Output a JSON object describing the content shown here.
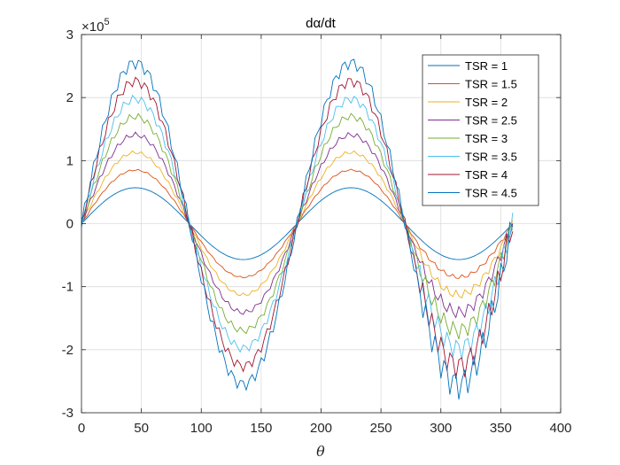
{
  "chart_data": {
    "type": "line",
    "title": "dα/dt",
    "xlabel": "θ",
    "ylabel": "",
    "xlim": [
      0,
      400
    ],
    "ylim": [
      -3,
      3
    ],
    "y_multiplier": "×10",
    "y_multiplier_exponent": "5",
    "xticks": [
      "0",
      "50",
      "100",
      "150",
      "200",
      "250",
      "300",
      "350",
      "400"
    ],
    "yticks": [
      "-3",
      "-2",
      "-1",
      "0",
      "1",
      "2",
      "3"
    ],
    "grid": true,
    "legend_location": "top-right",
    "x": [
      0,
      45,
      90,
      135,
      180,
      225,
      270,
      315,
      360
    ],
    "series": [
      {
        "name": "TSR = 1",
        "color": "#0072BD",
        "values": [
          0,
          0.57,
          0,
          -0.57,
          0,
          0.57,
          0,
          -0.57,
          0
        ]
      },
      {
        "name": "TSR = 1.5",
        "color": "#D95319",
        "values": [
          0,
          0.85,
          0,
          -0.85,
          0,
          0.85,
          0,
          -0.85,
          0
        ]
      },
      {
        "name": "TSR = 2",
        "color": "#EDB120",
        "values": [
          0,
          1.13,
          0,
          -1.13,
          0,
          1.13,
          0,
          -1.13,
          0
        ]
      },
      {
        "name": "TSR = 2.5",
        "color": "#7E2F8E",
        "values": [
          0,
          1.41,
          0,
          -1.41,
          0,
          1.41,
          0,
          -1.41,
          0
        ]
      },
      {
        "name": "TSR = 3",
        "color": "#77AC30",
        "values": [
          0,
          1.7,
          0,
          -1.7,
          0,
          1.7,
          0,
          -1.7,
          0
        ]
      },
      {
        "name": "TSR = 3.5",
        "color": "#4DBEEE",
        "values": [
          0,
          1.98,
          0,
          -1.98,
          0,
          1.98,
          0,
          -1.98,
          0
        ]
      },
      {
        "name": "TSR = 4",
        "color": "#A2142F",
        "values": [
          0,
          2.26,
          0,
          -2.26,
          0,
          2.26,
          0,
          -2.26,
          0
        ]
      },
      {
        "name": "TSR = 4.5",
        "color": "#0072BD",
        "values": [
          0,
          2.55,
          0,
          -2.55,
          0,
          2.55,
          0,
          -2.55,
          0
        ]
      }
    ]
  }
}
